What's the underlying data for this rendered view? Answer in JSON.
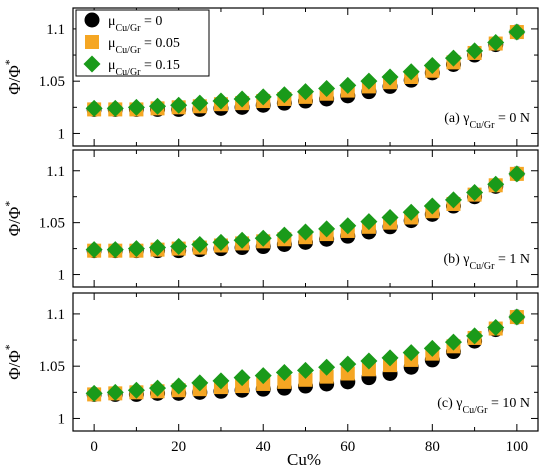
{
  "figure": {
    "xlabel": "Cu%",
    "ylabel_base": "Φ/Φ",
    "ylabel_sup": "*"
  },
  "colors": {
    "mu_0": "#000000",
    "mu_005": "#f5a623",
    "mu_015": "#1a9a1a"
  },
  "legend": [
    {
      "pre": "μ",
      "sub": "Cu/Gr",
      "post": " = 0",
      "symbol": "circle",
      "color": "#000000"
    },
    {
      "pre": "μ",
      "sub": "Cu/Gr",
      "post": " = 0.05",
      "symbol": "square",
      "color": "#f5a623"
    },
    {
      "pre": "μ",
      "sub": "Cu/Gr",
      "post": " = 0.15",
      "symbol": "diamond",
      "color": "#1a9a1a"
    }
  ],
  "chart_data": [
    {
      "type": "scatter",
      "annotation": {
        "pre": "(a) γ",
        "sub": "Cu/Gr",
        "post": " = 0 N"
      },
      "xlim": [
        -5,
        105
      ],
      "ylim": [
        0.988,
        1.12
      ],
      "xticks": [
        0,
        20,
        40,
        60,
        80,
        100
      ],
      "yticks": [
        1,
        1.05,
        1.1
      ],
      "ytick_labels": [
        "1",
        "1.05",
        "1.1"
      ],
      "x": [
        0,
        5,
        10,
        15,
        20,
        25,
        30,
        35,
        40,
        45,
        50,
        55,
        60,
        65,
        70,
        75,
        80,
        85,
        90,
        95,
        100
      ],
      "series": [
        {
          "name": "μCu/Gr = 0",
          "marker": "circle",
          "color": "#000000",
          "values": [
            1.023,
            1.023,
            1.023,
            1.023,
            1.023,
            1.023,
            1.024,
            1.025,
            1.027,
            1.029,
            1.031,
            1.033,
            1.036,
            1.04,
            1.045,
            1.051,
            1.058,
            1.066,
            1.075,
            1.085,
            1.097
          ]
        },
        {
          "name": "μCu/Gr = 0.05",
          "marker": "square",
          "color": "#f5a623",
          "values": [
            1.023,
            1.023,
            1.023,
            1.024,
            1.025,
            1.026,
            1.028,
            1.029,
            1.031,
            1.033,
            1.035,
            1.038,
            1.041,
            1.045,
            1.049,
            1.054,
            1.06,
            1.068,
            1.077,
            1.086,
            1.097
          ]
        },
        {
          "name": "μCu/Gr = 0.15",
          "marker": "diamond",
          "color": "#1a9a1a",
          "values": [
            1.024,
            1.024,
            1.025,
            1.026,
            1.027,
            1.029,
            1.031,
            1.033,
            1.035,
            1.037,
            1.04,
            1.043,
            1.046,
            1.05,
            1.054,
            1.059,
            1.065,
            1.072,
            1.079,
            1.087,
            1.097
          ]
        }
      ]
    },
    {
      "type": "scatter",
      "annotation": {
        "pre": "(b) γ",
        "sub": "Cu/Gr",
        "post": " = 1 N"
      },
      "xlim": [
        -5,
        105
      ],
      "ylim": [
        0.988,
        1.12
      ],
      "xticks": [
        0,
        20,
        40,
        60,
        80,
        100
      ],
      "yticks": [
        1,
        1.05,
        1.1
      ],
      "ytick_labels": [
        "1",
        "1.05",
        "1.1"
      ],
      "x": [
        0,
        5,
        10,
        15,
        20,
        25,
        30,
        35,
        40,
        45,
        50,
        55,
        60,
        65,
        70,
        75,
        80,
        85,
        90,
        95,
        100
      ],
      "series": [
        {
          "name": "μCu/Gr = 0",
          "marker": "circle",
          "color": "#000000",
          "values": [
            1.023,
            1.023,
            1.023,
            1.023,
            1.023,
            1.024,
            1.025,
            1.026,
            1.027,
            1.029,
            1.031,
            1.034,
            1.037,
            1.041,
            1.046,
            1.052,
            1.058,
            1.066,
            1.075,
            1.085,
            1.097
          ]
        },
        {
          "name": "μCu/Gr = 0.05",
          "marker": "square",
          "color": "#f5a623",
          "values": [
            1.023,
            1.023,
            1.023,
            1.024,
            1.025,
            1.026,
            1.028,
            1.03,
            1.032,
            1.034,
            1.036,
            1.039,
            1.042,
            1.046,
            1.05,
            1.055,
            1.061,
            1.068,
            1.077,
            1.086,
            1.097
          ]
        },
        {
          "name": "μCu/Gr = 0.15",
          "marker": "diamond",
          "color": "#1a9a1a",
          "values": [
            1.024,
            1.024,
            1.025,
            1.026,
            1.027,
            1.029,
            1.031,
            1.033,
            1.035,
            1.038,
            1.041,
            1.044,
            1.047,
            1.051,
            1.055,
            1.06,
            1.066,
            1.072,
            1.079,
            1.087,
            1.097
          ]
        }
      ]
    },
    {
      "type": "scatter",
      "annotation": {
        "pre": "(c) γ",
        "sub": "Cu/Gr",
        "post": " = 10 N"
      },
      "xlim": [
        -5,
        105
      ],
      "ylim": [
        0.988,
        1.12
      ],
      "xticks": [
        0,
        20,
        40,
        60,
        80,
        100
      ],
      "yticks": [
        1,
        1.05,
        1.1
      ],
      "ytick_labels": [
        "1",
        "1.05",
        "1.1"
      ],
      "x": [
        0,
        5,
        10,
        15,
        20,
        25,
        30,
        35,
        40,
        45,
        50,
        55,
        60,
        65,
        70,
        75,
        80,
        85,
        90,
        95,
        100
      ],
      "series": [
        {
          "name": "μCu/Gr = 0",
          "marker": "circle",
          "color": "#000000",
          "values": [
            1.023,
            1.023,
            1.023,
            1.024,
            1.024,
            1.025,
            1.026,
            1.027,
            1.028,
            1.029,
            1.031,
            1.033,
            1.035,
            1.039,
            1.043,
            1.049,
            1.056,
            1.064,
            1.074,
            1.085,
            1.097
          ]
        },
        {
          "name": "μCu/Gr = 0.05",
          "marker": "square",
          "color": "#f5a623",
          "values": [
            1.023,
            1.024,
            1.025,
            1.026,
            1.027,
            1.028,
            1.03,
            1.031,
            1.033,
            1.035,
            1.037,
            1.04,
            1.043,
            1.047,
            1.051,
            1.056,
            1.062,
            1.069,
            1.077,
            1.086,
            1.097
          ]
        },
        {
          "name": "μCu/Gr = 0.15",
          "marker": "diamond",
          "color": "#1a9a1a",
          "values": [
            1.024,
            1.025,
            1.027,
            1.029,
            1.031,
            1.034,
            1.036,
            1.039,
            1.041,
            1.044,
            1.046,
            1.049,
            1.052,
            1.055,
            1.058,
            1.063,
            1.067,
            1.073,
            1.079,
            1.087,
            1.097
          ]
        }
      ]
    }
  ]
}
